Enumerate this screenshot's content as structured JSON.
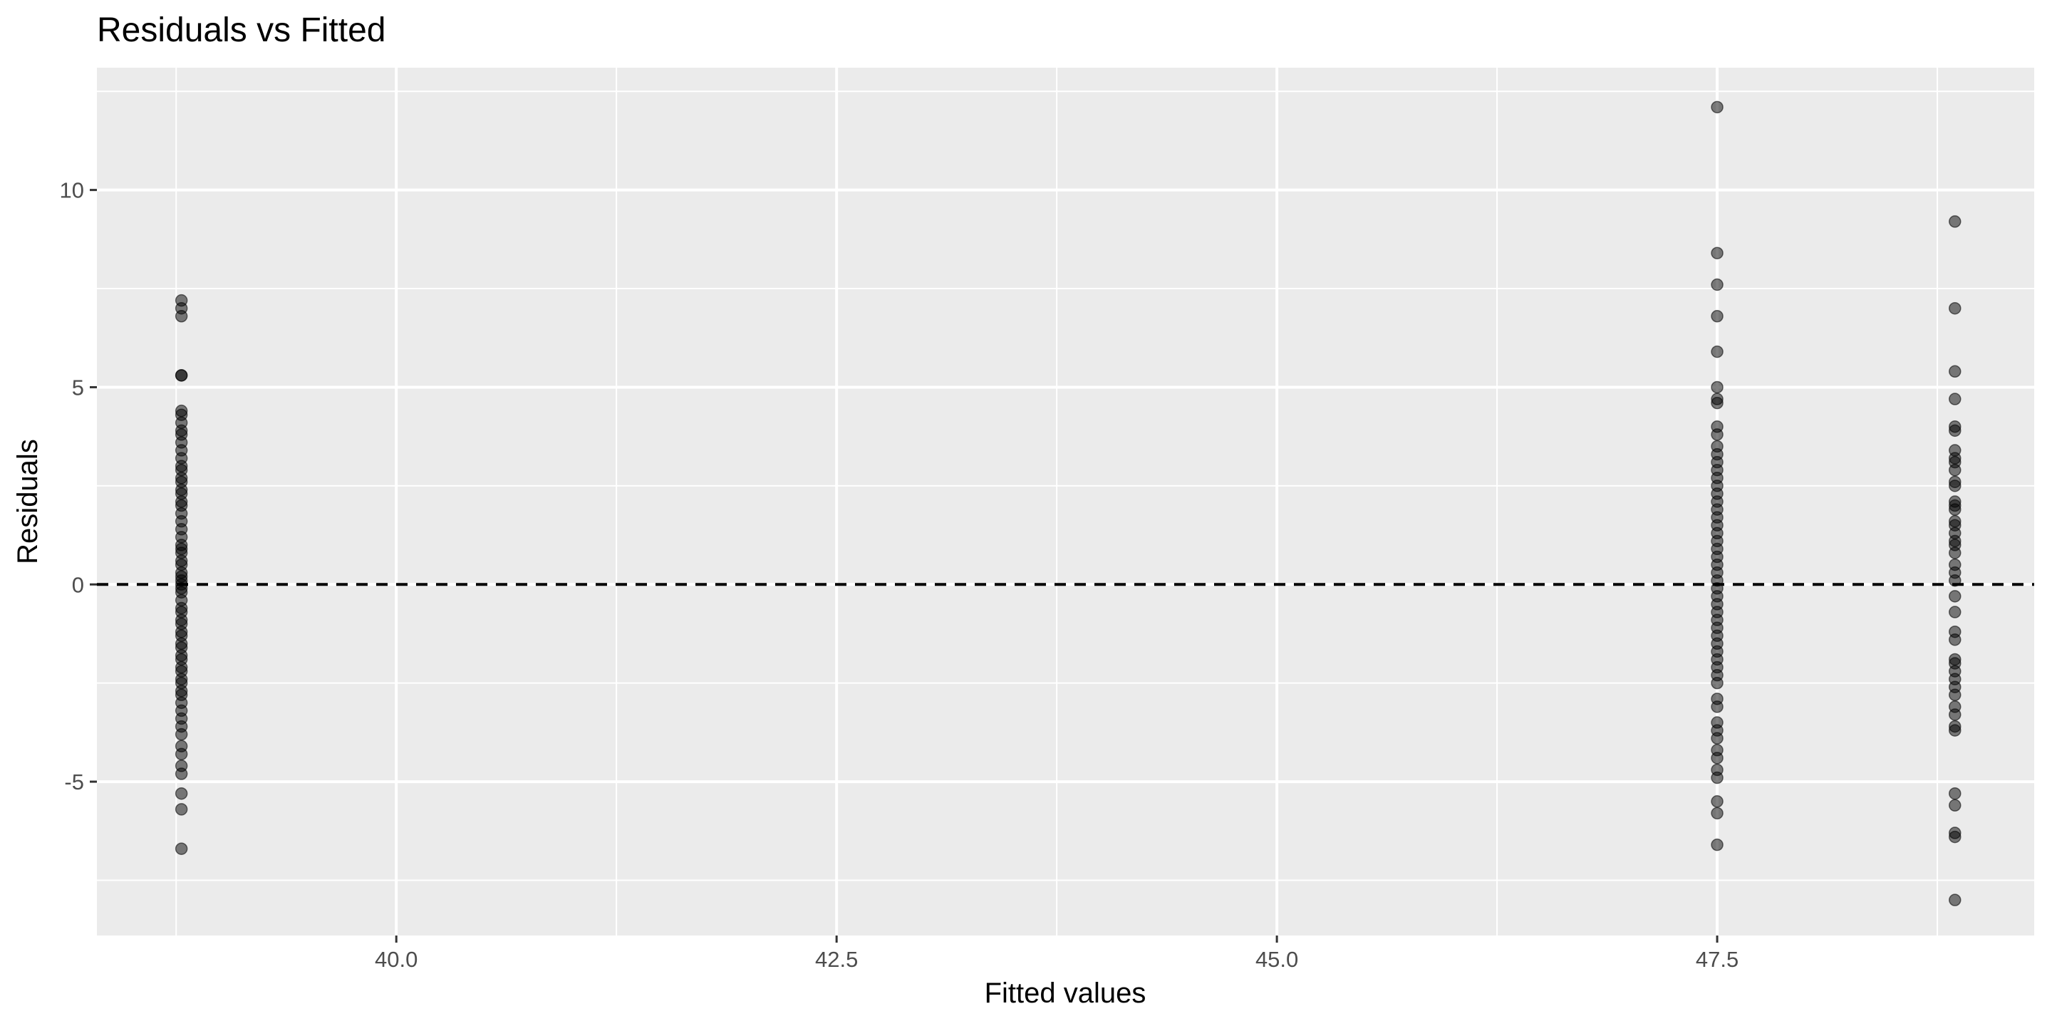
{
  "chart_data": {
    "type": "scatter",
    "title": "Residuals vs Fitted",
    "xlabel": "Fitted values",
    "ylabel": "Residuals",
    "xlim": [
      38.3,
      49.3
    ],
    "ylim": [
      -8.9,
      13.1
    ],
    "x_ticks": [
      40.0,
      42.5,
      45.0,
      47.5
    ],
    "x_tick_labels": [
      "40.0",
      "42.5",
      "45.0",
      "47.5"
    ],
    "y_ticks": [
      -5,
      0,
      5,
      10
    ],
    "y_tick_labels": [
      "-5",
      "0",
      "5",
      "10"
    ],
    "x_minor_ticks": [
      38.75,
      41.25,
      43.75,
      46.25,
      48.75
    ],
    "y_minor_ticks": [
      -7.5,
      -2.5,
      2.5,
      7.5,
      12.5
    ],
    "grid": true,
    "reference_line": {
      "y": 0,
      "style": "dashed",
      "color": "#000000"
    },
    "point_color": "#000000",
    "point_opacity": 0.5,
    "panel_background": "#ebebeb",
    "grid_color": "#ffffff",
    "series": [
      {
        "x": 38.78,
        "y": [
          7.2,
          7.0,
          6.8,
          5.3,
          5.3,
          4.4,
          4.3,
          4.1,
          3.9,
          3.8,
          3.6,
          3.4,
          3.2,
          3.0,
          2.9,
          2.7,
          2.6,
          2.4,
          2.3,
          2.1,
          2.0,
          1.8,
          1.6,
          1.4,
          1.2,
          1.0,
          0.9,
          0.8,
          0.6,
          0.5,
          0.3,
          0.2,
          0.1,
          0.0,
          -0.1,
          -0.2,
          -0.4,
          -0.6,
          -0.7,
          -0.9,
          -1.0,
          -1.2,
          -1.3,
          -1.5,
          -1.6,
          -1.8,
          -1.9,
          -2.1,
          -2.2,
          -2.4,
          -2.5,
          -2.7,
          -2.8,
          -3.0,
          -3.2,
          -3.4,
          -3.6,
          -3.8,
          -4.1,
          -4.3,
          -4.6,
          -4.8,
          -5.3,
          -5.7,
          -6.7
        ]
      },
      {
        "x": 47.5,
        "y": [
          12.1,
          8.4,
          7.6,
          6.8,
          5.9,
          5.0,
          4.7,
          4.6,
          4.0,
          3.8,
          3.5,
          3.3,
          3.1,
          2.9,
          2.7,
          2.5,
          2.3,
          2.1,
          1.9,
          1.7,
          1.5,
          1.3,
          1.1,
          0.9,
          0.7,
          0.5,
          0.3,
          0.1,
          -0.1,
          -0.3,
          -0.5,
          -0.7,
          -0.9,
          -1.1,
          -1.3,
          -1.5,
          -1.7,
          -1.9,
          -2.1,
          -2.3,
          -2.5,
          -2.9,
          -3.1,
          -3.5,
          -3.7,
          -3.9,
          -4.2,
          -4.4,
          -4.7,
          -4.9,
          -5.5,
          -5.8,
          -6.6
        ]
      },
      {
        "x": 48.85,
        "y": [
          9.2,
          7.0,
          5.4,
          4.7,
          4.0,
          3.9,
          3.4,
          3.2,
          3.1,
          2.9,
          2.6,
          2.5,
          2.1,
          2.0,
          1.9,
          1.6,
          1.5,
          1.3,
          1.1,
          1.0,
          0.8,
          0.5,
          0.3,
          0.1,
          -0.3,
          -0.7,
          -1.2,
          -1.4,
          -1.9,
          -2.0,
          -2.2,
          -2.4,
          -2.6,
          -2.8,
          -3.1,
          -3.3,
          -3.6,
          -3.7,
          -5.3,
          -5.6,
          -6.3,
          -6.4,
          -8.0
        ]
      }
    ]
  }
}
